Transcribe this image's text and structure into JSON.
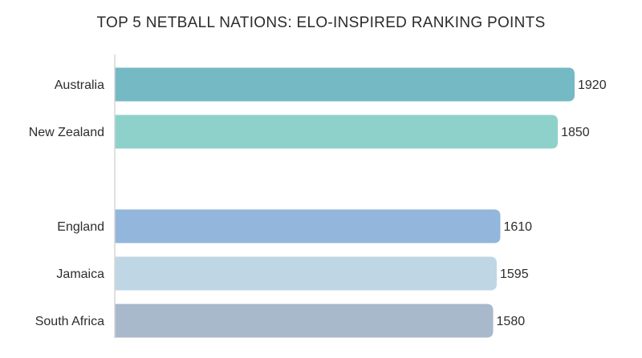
{
  "chart_data": {
    "type": "bar",
    "orientation": "horizontal",
    "title": "TOP 5 NETBALL NATIONS: ELO-INSPIRED RANKING POINTS",
    "xlabel": "",
    "ylabel": "",
    "grid": false,
    "legend": "none",
    "xlim": [
      0,
      2000
    ],
    "categories": [
      "Australia",
      "New Zealand",
      "",
      "England",
      "Jamaica",
      "South Africa"
    ],
    "values": [
      1920,
      1850,
      null,
      1610,
      1595,
      1580
    ],
    "value_labels": [
      "1920",
      "1850",
      "",
      "1610",
      "1595",
      "1580"
    ],
    "colors": [
      "#74b9c3",
      "#8ed1cb",
      "",
      "#93b6dc",
      "#bfd6e4",
      "#a9b9cc"
    ]
  }
}
